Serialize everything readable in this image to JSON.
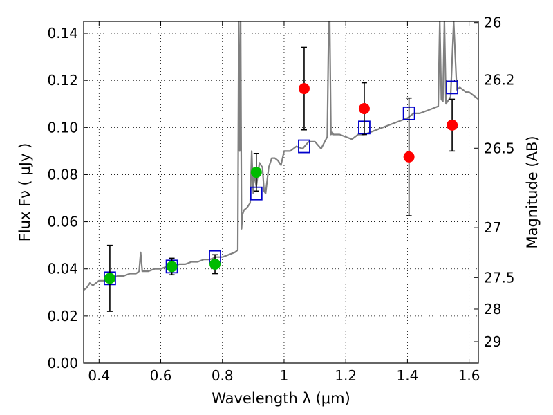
{
  "chart_data": {
    "type": "scatter",
    "xlabel": "Wavelength  λ (μm)",
    "ylabel": "Flux  Fν  ( μJy )",
    "ylabel_right": "Magnitude (AB)",
    "xlim": [
      0.35,
      1.63
    ],
    "ylim": [
      0.0,
      0.145
    ],
    "x_ticks": [
      0.4,
      0.6,
      0.8,
      1.0,
      1.2,
      1.4,
      1.6
    ],
    "x_tick_labels": [
      "0.4",
      "0.6",
      "0.8",
      "1",
      "1.2",
      "1.4",
      "1.6"
    ],
    "y_ticks": [
      0.0,
      0.02,
      0.04,
      0.06,
      0.08,
      0.1,
      0.12,
      0.14
    ],
    "y_tick_labels": [
      "0.00",
      "0.02",
      "0.04",
      "0.06",
      "0.08",
      "0.10",
      "0.12",
      "0.14"
    ],
    "right_ticks": [
      {
        "label": "26",
        "flux": 0.1445
      },
      {
        "label": "26.2",
        "flux": 0.1202
      },
      {
        "label": "26.5",
        "flux": 0.0912
      },
      {
        "label": "27",
        "flux": 0.0575
      },
      {
        "label": "27.5",
        "flux": 0.0363
      },
      {
        "label": "28",
        "flux": 0.0229
      },
      {
        "label": "29",
        "flux": 0.0091
      }
    ],
    "grid": true,
    "colors": {
      "model": "#808080",
      "green": "#00bb00",
      "red": "#ff0000",
      "squares": "#0000cc",
      "errorbar": "#000000"
    },
    "series": [
      {
        "kind": "model-spectrum",
        "x": [
          0.35,
          0.36,
          0.37,
          0.38,
          0.4,
          0.42,
          0.44,
          0.46,
          0.48,
          0.5,
          0.52,
          0.53,
          0.535,
          0.54,
          0.56,
          0.58,
          0.6,
          0.62,
          0.64,
          0.66,
          0.68,
          0.7,
          0.72,
          0.74,
          0.76,
          0.78,
          0.8,
          0.82,
          0.84,
          0.85,
          0.853,
          0.856,
          0.859,
          0.862,
          0.865,
          0.87,
          0.88,
          0.89,
          0.895,
          0.9,
          0.903,
          0.906,
          0.91,
          0.92,
          0.93,
          0.935,
          0.94,
          0.95,
          0.96,
          0.97,
          0.98,
          0.99,
          1.0,
          1.02,
          1.04,
          1.06,
          1.08,
          1.1,
          1.12,
          1.14,
          1.145,
          1.148,
          1.152,
          1.156,
          1.16,
          1.18,
          1.2,
          1.22,
          1.24,
          1.26,
          1.28,
          1.3,
          1.32,
          1.34,
          1.36,
          1.38,
          1.4,
          1.42,
          1.44,
          1.46,
          1.48,
          1.5,
          1.505,
          1.51,
          1.515,
          1.52,
          1.525,
          1.53,
          1.54,
          1.55,
          1.56,
          1.57,
          1.58,
          1.59,
          1.6,
          1.61,
          1.62,
          1.63
        ],
        "y": [
          0.031,
          0.032,
          0.034,
          0.033,
          0.035,
          0.035,
          0.036,
          0.037,
          0.037,
          0.038,
          0.038,
          0.039,
          0.047,
          0.039,
          0.039,
          0.04,
          0.04,
          0.041,
          0.041,
          0.042,
          0.042,
          0.043,
          0.043,
          0.044,
          0.044,
          0.045,
          0.045,
          0.046,
          0.047,
          0.048,
          0.145,
          0.09,
          0.145,
          0.057,
          0.063,
          0.065,
          0.066,
          0.068,
          0.09,
          0.072,
          0.082,
          0.078,
          0.075,
          0.085,
          0.083,
          0.073,
          0.072,
          0.083,
          0.087,
          0.087,
          0.086,
          0.084,
          0.09,
          0.09,
          0.092,
          0.091,
          0.094,
          0.094,
          0.091,
          0.096,
          0.145,
          0.145,
          0.097,
          0.098,
          0.097,
          0.097,
          0.096,
          0.095,
          0.097,
          0.097,
          0.098,
          0.099,
          0.1,
          0.101,
          0.102,
          0.103,
          0.104,
          0.106,
          0.106,
          0.107,
          0.108,
          0.109,
          0.145,
          0.112,
          0.111,
          0.145,
          0.11,
          0.111,
          0.113,
          0.145,
          0.116,
          0.117,
          0.116,
          0.115,
          0.115,
          0.114,
          0.113,
          0.112
        ]
      },
      {
        "kind": "model-photometry",
        "marker": "square",
        "x": [
          0.435,
          0.636,
          0.776,
          0.91,
          1.065,
          1.26,
          1.405,
          1.545
        ],
        "y": [
          0.036,
          0.041,
          0.045,
          0.072,
          0.092,
          0.1,
          0.106,
          0.117
        ]
      },
      {
        "kind": "observed",
        "color": "green",
        "marker": "circle",
        "x": [
          0.435,
          0.636,
          0.776,
          0.91
        ],
        "y": [
          0.036,
          0.041,
          0.042,
          0.081
        ],
        "yerr": [
          0.014,
          0.0035,
          0.004,
          0.008
        ]
      },
      {
        "kind": "observed",
        "color": "red",
        "marker": "circle",
        "x": [
          1.065,
          1.26,
          1.405,
          1.545
        ],
        "y": [
          0.1165,
          0.108,
          0.0875,
          0.101
        ],
        "yerr": [
          0.0175,
          0.011,
          0.025,
          0.011
        ]
      }
    ]
  }
}
